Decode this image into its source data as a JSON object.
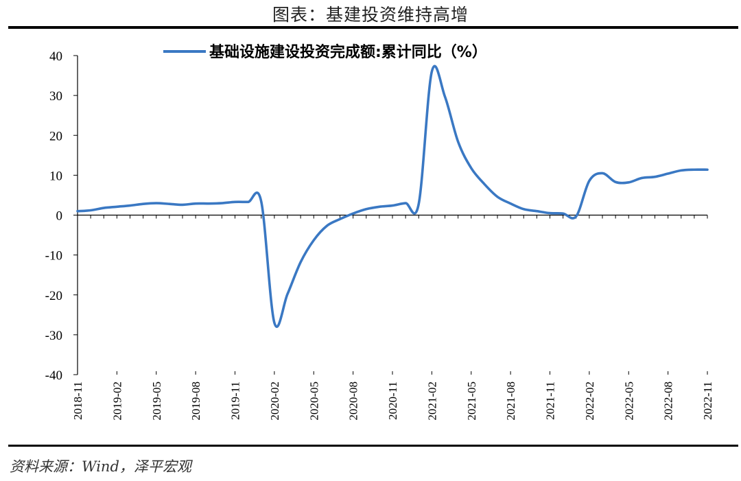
{
  "figure": {
    "title": "图表：基建投资维持高增",
    "source": "资料来源：Wind，泽平宏观"
  },
  "chart_data": {
    "type": "line",
    "series": [
      {
        "name": "基础设施建设投资完成额:累计同比（%）",
        "color": "#3a78c3",
        "points": [
          [
            "2018-11",
            1.0
          ],
          [
            "2018-12",
            1.2
          ],
          [
            "2019-01",
            1.8
          ],
          [
            "2019-02",
            2.1
          ],
          [
            "2019-03",
            2.4
          ],
          [
            "2019-04",
            2.8
          ],
          [
            "2019-05",
            3.0
          ],
          [
            "2019-06",
            2.8
          ],
          [
            "2019-07",
            2.6
          ],
          [
            "2019-08",
            2.9
          ],
          [
            "2019-09",
            2.9
          ],
          [
            "2019-10",
            3.0
          ],
          [
            "2019-11",
            3.3
          ],
          [
            "2019-12",
            3.3
          ],
          [
            "2020-01",
            3.4
          ],
          [
            "2020-02",
            -27.0
          ],
          [
            "2020-03",
            -19.8
          ],
          [
            "2020-04",
            -11.8
          ],
          [
            "2020-05",
            -6.3
          ],
          [
            "2020-06",
            -2.7
          ],
          [
            "2020-07",
            -1.0
          ],
          [
            "2020-08",
            0.4
          ],
          [
            "2020-09",
            1.5
          ],
          [
            "2020-10",
            2.1
          ],
          [
            "2020-11",
            2.4
          ],
          [
            "2020-12",
            3.0
          ],
          [
            "2021-01",
            2.8
          ],
          [
            "2021-02",
            36.0
          ],
          [
            "2021-03",
            29.7
          ],
          [
            "2021-04",
            18.4
          ],
          [
            "2021-05",
            11.8
          ],
          [
            "2021-06",
            7.8
          ],
          [
            "2021-07",
            4.6
          ],
          [
            "2021-08",
            2.9
          ],
          [
            "2021-09",
            1.5
          ],
          [
            "2021-10",
            1.0
          ],
          [
            "2021-11",
            0.5
          ],
          [
            "2021-12",
            0.4
          ],
          [
            "2022-01",
            -0.3
          ],
          [
            "2022-02",
            8.6
          ],
          [
            "2022-03",
            10.5
          ],
          [
            "2022-04",
            8.3
          ],
          [
            "2022-05",
            8.2
          ],
          [
            "2022-06",
            9.3
          ],
          [
            "2022-07",
            9.6
          ],
          [
            "2022-08",
            10.4
          ],
          [
            "2022-09",
            11.2
          ],
          [
            "2022-10",
            11.4
          ],
          [
            "2022-11",
            11.4
          ]
        ]
      }
    ],
    "xticks": [
      "2018-11",
      "2019-02",
      "2019-05",
      "2019-08",
      "2019-11",
      "2020-02",
      "2020-05",
      "2020-08",
      "2020-11",
      "2021-02",
      "2021-05",
      "2021-08",
      "2021-11",
      "2022-02",
      "2022-05",
      "2022-08",
      "2022-11"
    ],
    "yticks": [
      40,
      30,
      20,
      10,
      0,
      -10,
      -20,
      -30,
      -40
    ],
    "ylim": [
      -40,
      40
    ],
    "grid": false,
    "legend": "top-center"
  }
}
